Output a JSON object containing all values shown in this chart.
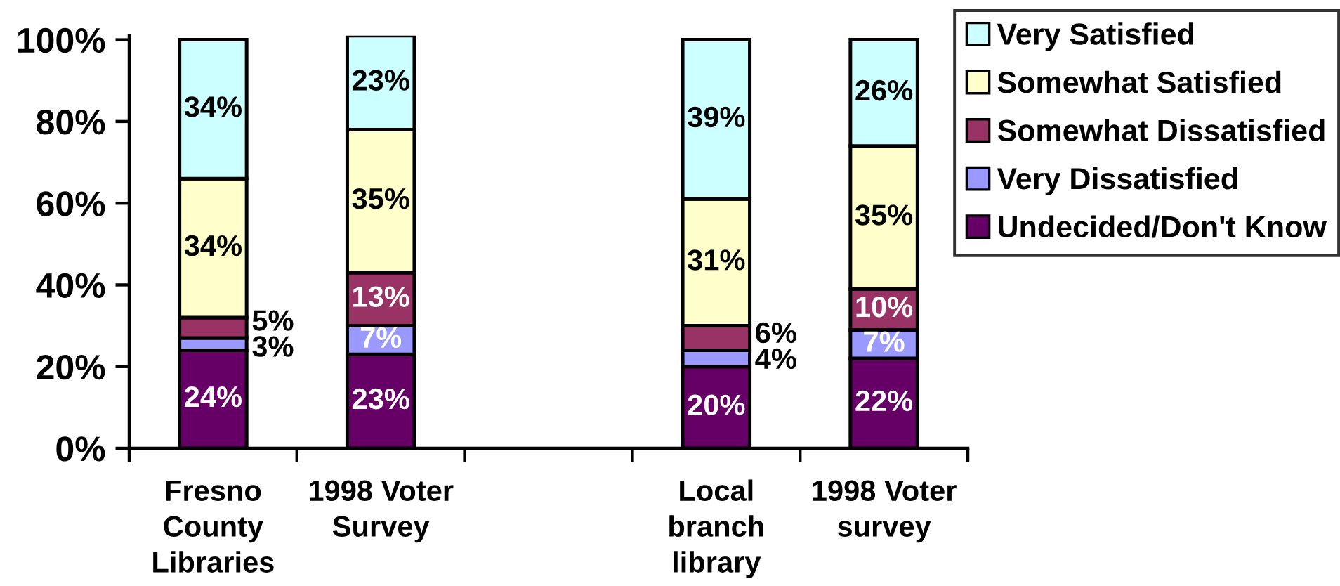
{
  "chart_data": {
    "type": "bar",
    "stacked": true,
    "categories": [
      "Fresno\nCounty\nLibraries",
      "1998 Voter\nSurvey",
      null,
      "Local\nbranch\nlibrary",
      "1998 Voter\nsurvey"
    ],
    "series": [
      {
        "name": "Undecided/Don't Know",
        "color": "#660066",
        "values": [
          24,
          23,
          null,
          20,
          22
        ],
        "value_labels": [
          "24%",
          "23%",
          null,
          "20%",
          "22%"
        ]
      },
      {
        "name": "Very Dissatisfied",
        "color": "#9999ff",
        "values": [
          3,
          7,
          null,
          4,
          7
        ],
        "value_labels": [
          "3%",
          "7%",
          null,
          "4%",
          "7%"
        ]
      },
      {
        "name": "Somewhat Dissatisfied",
        "color": "#993366",
        "values": [
          5,
          13,
          null,
          6,
          10
        ],
        "value_labels": [
          "5%",
          "13%",
          null,
          "6%",
          "10%"
        ]
      },
      {
        "name": "Somewhat Satisfied",
        "color": "#ffffcc",
        "values": [
          34,
          35,
          null,
          31,
          35
        ],
        "value_labels": [
          "34%",
          "35%",
          null,
          "31%",
          "35%"
        ]
      },
      {
        "name": "Very Satisfied",
        "color": "#ccffff",
        "values": [
          34,
          23,
          null,
          39,
          26
        ],
        "value_labels": [
          "34%",
          "23%",
          null,
          "39%",
          "26%"
        ]
      }
    ],
    "ylim": [
      0,
      101
    ],
    "yticks": [
      {
        "value": 0,
        "label": "0%"
      },
      {
        "value": 20,
        "label": "20%"
      },
      {
        "value": 40,
        "label": "40%"
      },
      {
        "value": 60,
        "label": "60%"
      },
      {
        "value": 80,
        "label": "80%"
      },
      {
        "value": 100,
        "label": "100%"
      }
    ],
    "legend": "top right"
  }
}
